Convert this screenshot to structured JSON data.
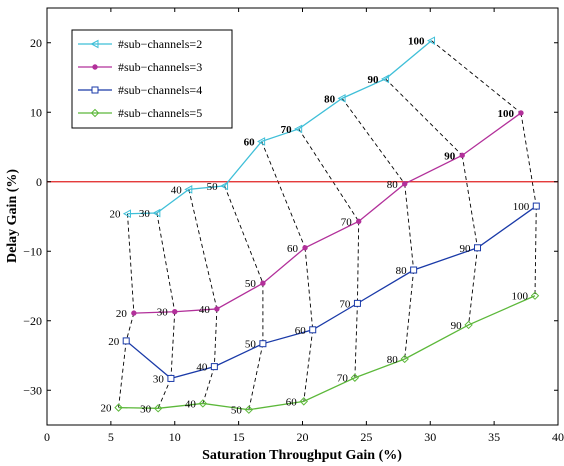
{
  "chart_data": {
    "type": "line",
    "xlabel": "Saturation Throughput Gain (%)",
    "ylabel": "Delay Gain (%)",
    "xlim": [
      0,
      40
    ],
    "ylim": [
      -35,
      25
    ],
    "xticks": [
      0,
      5,
      10,
      15,
      20,
      25,
      30,
      35,
      40
    ],
    "yticks": [
      -30,
      -20,
      -10,
      0,
      10,
      20
    ],
    "grid": false,
    "legend_position": "top-left",
    "reference_line": {
      "y": 0,
      "color": "#e02020"
    },
    "series": [
      {
        "name": "#sub−channels=2",
        "color": "#3fbfd8",
        "marker": "triangle-left",
        "points": [
          {
            "x": 6.3,
            "y": -4.6,
            "label": "20"
          },
          {
            "x": 8.6,
            "y": -4.5,
            "label": "30"
          },
          {
            "x": 11.1,
            "y": -1.1,
            "label": "40"
          },
          {
            "x": 13.9,
            "y": -0.6,
            "label": "50"
          },
          {
            "x": 16.8,
            "y": 5.8,
            "label": "60"
          },
          {
            "x": 19.7,
            "y": 7.6,
            "label": "70"
          },
          {
            "x": 23.1,
            "y": 12.0,
            "label": "80"
          },
          {
            "x": 26.5,
            "y": 14.8,
            "label": "90"
          },
          {
            "x": 30.1,
            "y": 20.3,
            "label": "100"
          }
        ]
      },
      {
        "name": "#sub−channels=3",
        "color": "#b2309a",
        "marker": "dot",
        "points": [
          {
            "x": 6.8,
            "y": -18.9,
            "label": "20"
          },
          {
            "x": 10.0,
            "y": -18.7,
            "label": "30"
          },
          {
            "x": 13.3,
            "y": -18.3,
            "label": "40"
          },
          {
            "x": 16.9,
            "y": -14.6,
            "label": "50"
          },
          {
            "x": 20.2,
            "y": -9.5,
            "label": "60"
          },
          {
            "x": 24.4,
            "y": -5.7,
            "label": "70"
          },
          {
            "x": 28.0,
            "y": -0.3,
            "label": "80"
          },
          {
            "x": 32.5,
            "y": 3.8,
            "label": "90"
          },
          {
            "x": 37.1,
            "y": 9.9,
            "label": "100"
          }
        ]
      },
      {
        "name": "#sub−channels=4",
        "color": "#1a3aa8",
        "marker": "square",
        "points": [
          {
            "x": 6.2,
            "y": -22.9,
            "label": "20"
          },
          {
            "x": 9.7,
            "y": -28.3,
            "label": "30"
          },
          {
            "x": 13.1,
            "y": -26.6,
            "label": "40"
          },
          {
            "x": 16.9,
            "y": -23.3,
            "label": "50"
          },
          {
            "x": 20.8,
            "y": -21.3,
            "label": "60"
          },
          {
            "x": 24.3,
            "y": -17.5,
            "label": "70"
          },
          {
            "x": 28.7,
            "y": -12.7,
            "label": "80"
          },
          {
            "x": 33.7,
            "y": -9.5,
            "label": "90"
          },
          {
            "x": 38.3,
            "y": -3.5,
            "label": "100"
          }
        ]
      },
      {
        "name": "#sub−channels=5",
        "color": "#5cb83a",
        "marker": "diamond",
        "points": [
          {
            "x": 5.6,
            "y": -32.5,
            "label": "20"
          },
          {
            "x": 8.7,
            "y": -32.6,
            "label": "30"
          },
          {
            "x": 12.2,
            "y": -31.9,
            "label": "40"
          },
          {
            "x": 15.8,
            "y": -32.8,
            "label": "50"
          },
          {
            "x": 20.1,
            "y": -31.6,
            "label": "60"
          },
          {
            "x": 24.1,
            "y": -28.2,
            "label": "70"
          },
          {
            "x": 28.0,
            "y": -25.5,
            "label": "80"
          },
          {
            "x": 33.0,
            "y": -20.6,
            "label": "90"
          },
          {
            "x": 38.2,
            "y": -16.4,
            "label": "100"
          }
        ]
      }
    ]
  }
}
